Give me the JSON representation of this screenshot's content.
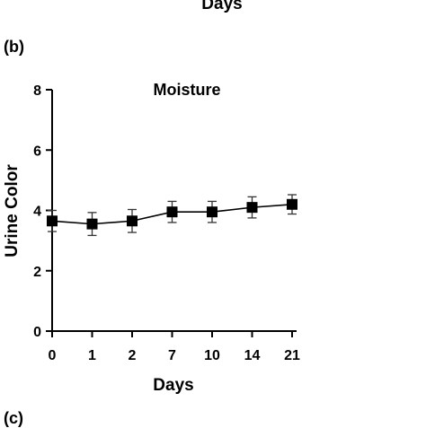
{
  "figure": {
    "top_cut_label": "Days",
    "panel_b_label": "(b)",
    "panel_c_label": "(c)"
  },
  "chart_data": {
    "type": "line",
    "title": "Moisture",
    "xlabel": "Days",
    "ylabel": "Urine Color",
    "categories": [
      "0",
      "1",
      "2",
      "7",
      "10",
      "14",
      "21"
    ],
    "series": [
      {
        "values": [
          3.65,
          3.55,
          3.65,
          3.95,
          3.95,
          4.1,
          4.2
        ],
        "error": [
          0.35,
          0.38,
          0.38,
          0.35,
          0.35,
          0.35,
          0.32
        ],
        "color": "#000000",
        "marker": "square"
      }
    ],
    "ylim": [
      0,
      8
    ],
    "yticks": [
      0,
      2,
      4,
      6,
      8
    ],
    "grid": false,
    "legend": "none"
  }
}
